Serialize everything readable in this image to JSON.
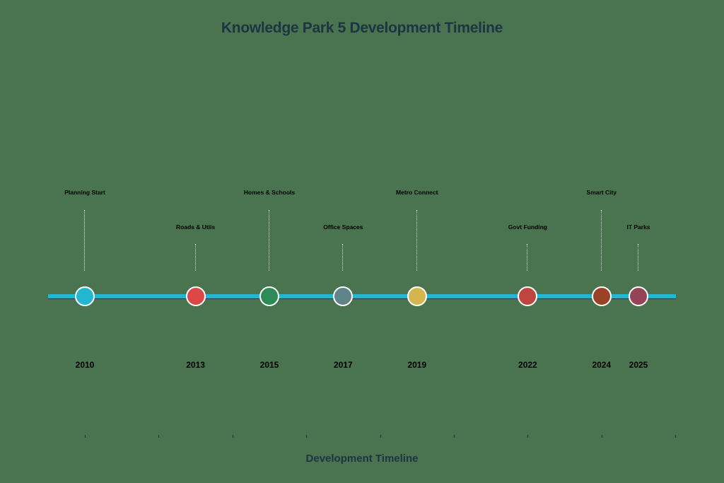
{
  "chart_data": {
    "type": "timeline",
    "title": "Knowledge Park 5 Development Timeline",
    "xlabel": "Development Timeline",
    "ylabel": "",
    "xlim": [
      2009,
      2026
    ],
    "x_ticks": [
      2010,
      2012,
      2014,
      2016,
      2018,
      2020,
      2022,
      2024,
      2026
    ],
    "grid": false,
    "legend": null,
    "events": [
      {
        "year": 2010,
        "label": "Planning Start",
        "color": "#22b7cf",
        "label_level": "high"
      },
      {
        "year": 2013,
        "label": "Roads & Utils",
        "color": "#dc4848",
        "label_level": "low"
      },
      {
        "year": 2015,
        "label": "Homes & Schools",
        "color": "#2e8a56",
        "label_level": "high"
      },
      {
        "year": 2017,
        "label": "Office Spaces",
        "color": "#5f8589",
        "label_level": "low"
      },
      {
        "year": 2019,
        "label": "Metro Connect",
        "color": "#d4b650",
        "label_level": "high"
      },
      {
        "year": 2022,
        "label": "Govt Funding",
        "color": "#bf4540",
        "label_level": "low"
      },
      {
        "year": 2024,
        "label": "Smart City",
        "color": "#9a4126",
        "label_level": "high"
      },
      {
        "year": 2025,
        "label": "IT Parks",
        "color": "#964358",
        "label_level": "low"
      }
    ]
  },
  "colors": {
    "background": "#4a7350",
    "timeline": "#22b7cf",
    "title": "#1d3442"
  },
  "years_display": [
    "2010",
    "2013",
    "2015",
    "2017",
    "2019",
    "2022",
    "2024",
    "2025"
  ]
}
